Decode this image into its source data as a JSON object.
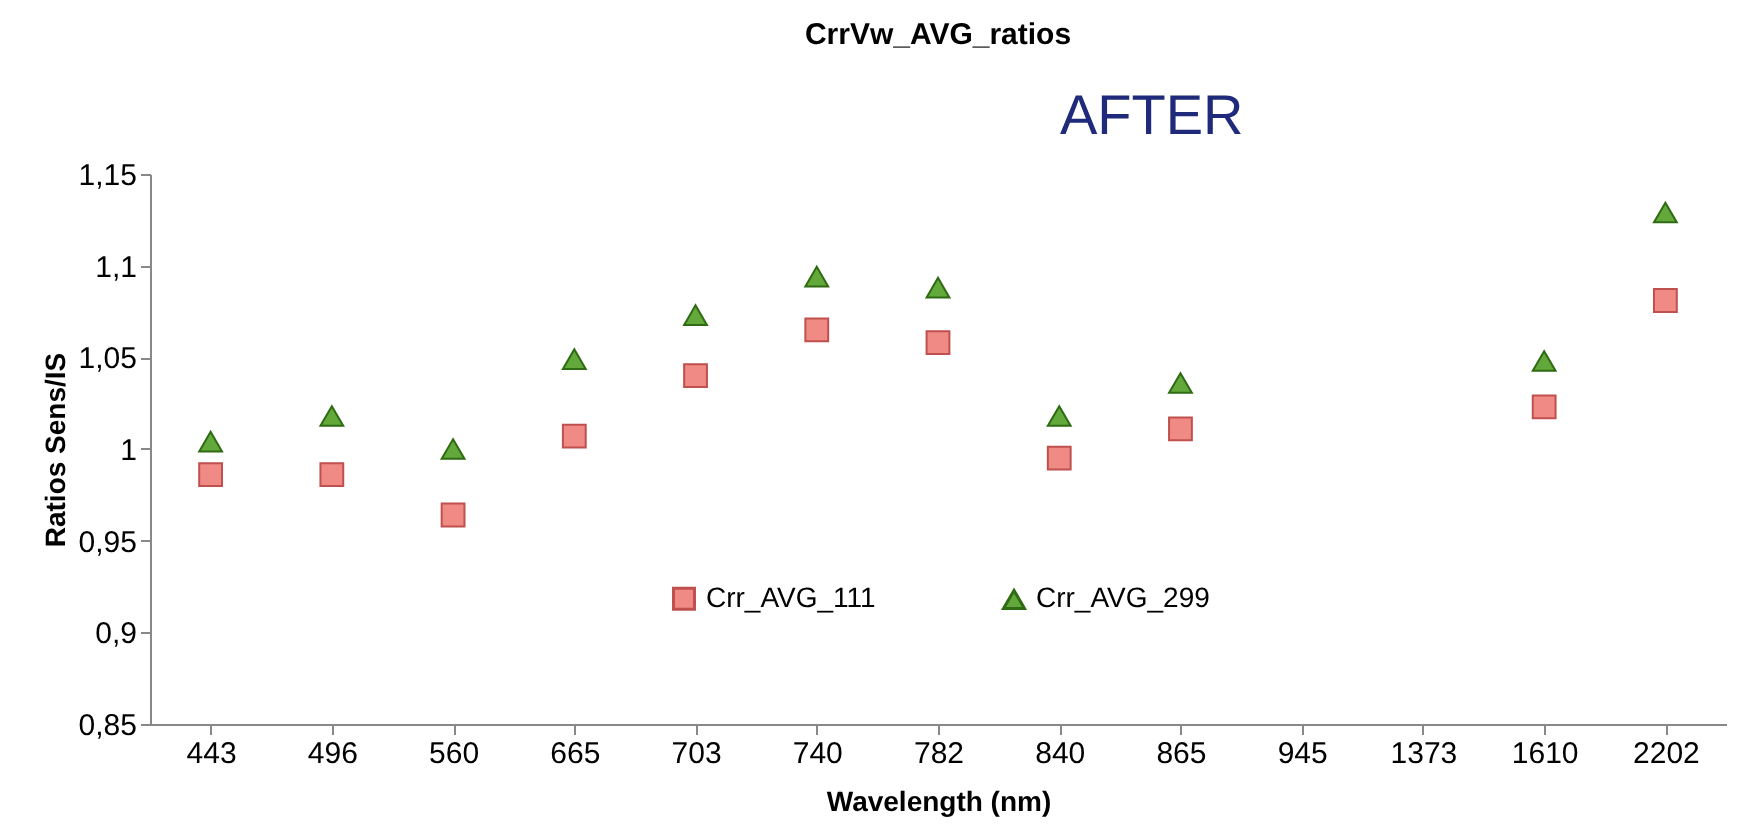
{
  "chart_data": {
    "type": "scatter",
    "title": "CrrVw_AVG_ratios",
    "xlabel": "Wavelength (nm)",
    "ylabel": "Ratios Sens/IS",
    "categories": [
      "443",
      "496",
      "560",
      "665",
      "703",
      "740",
      "782",
      "840",
      "865",
      "945",
      "1373",
      "1610",
      "2202"
    ],
    "series": [
      {
        "name": "Crr_AVG_111",
        "color": "#f08a84",
        "marker": "square",
        "values": [
          0.986,
          0.986,
          0.964,
          1.007,
          1.04,
          1.065,
          1.058,
          0.995,
          1.011,
          null,
          null,
          1.023,
          1.081
        ]
      },
      {
        "name": "Crr_AVG_299",
        "color": "#62a83a",
        "marker": "triangle",
        "values": [
          1.004,
          1.018,
          1.0,
          1.049,
          1.073,
          1.094,
          1.088,
          1.018,
          1.036,
          null,
          null,
          1.048,
          1.129
        ]
      }
    ],
    "ylim": [
      0.85,
      1.15
    ],
    "yticks": [
      {
        "value": 0.85,
        "label": "0,85"
      },
      {
        "value": 0.9,
        "label": "0,9"
      },
      {
        "value": 0.95,
        "label": "0,95"
      },
      {
        "value": 1,
        "label": "1"
      },
      {
        "value": 1.05,
        "label": "1,05"
      },
      {
        "value": 1.1,
        "label": "1,1"
      },
      {
        "value": 1.15,
        "label": "1,15"
      }
    ],
    "grid": false,
    "legend": "bottom",
    "annotations": [
      "AFTER"
    ]
  }
}
